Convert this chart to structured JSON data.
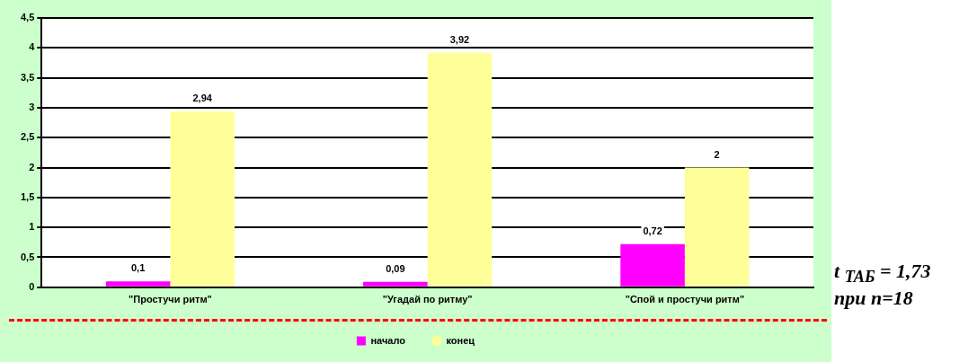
{
  "chart_data": {
    "type": "bar",
    "categories": [
      "\"Простучи ритм\"",
      "\"Угадай по ритму\"",
      "\"Спой и простучи ритм\""
    ],
    "series": [
      {
        "name": "начало",
        "color": "#ff00ff",
        "values": [
          0.1,
          0.09,
          0.72
        ],
        "value_labels": [
          "0,1",
          "0,09",
          "0,72"
        ]
      },
      {
        "name": "конец",
        "color": "#ffff99",
        "values": [
          2.94,
          3.92,
          2
        ],
        "value_labels": [
          "2,94",
          "3,92",
          "2"
        ]
      }
    ],
    "ylim": [
      0,
      4.5
    ],
    "yticks": [
      0,
      {
        "value": 0.5,
        "label": "0,5"
      },
      1,
      {
        "value": 1.5,
        "label": "1,5"
      },
      2,
      {
        "value": 2.5,
        "label": "2,5"
      },
      3,
      {
        "value": 3.5,
        "label": "3,5"
      },
      4,
      {
        "value": 4.5,
        "label": "4,5"
      }
    ],
    "grid": "y",
    "legend": "bottom",
    "annotations": [
      "t $_{ТАБ}$ = 1,73",
      "при n=18"
    ]
  }
}
